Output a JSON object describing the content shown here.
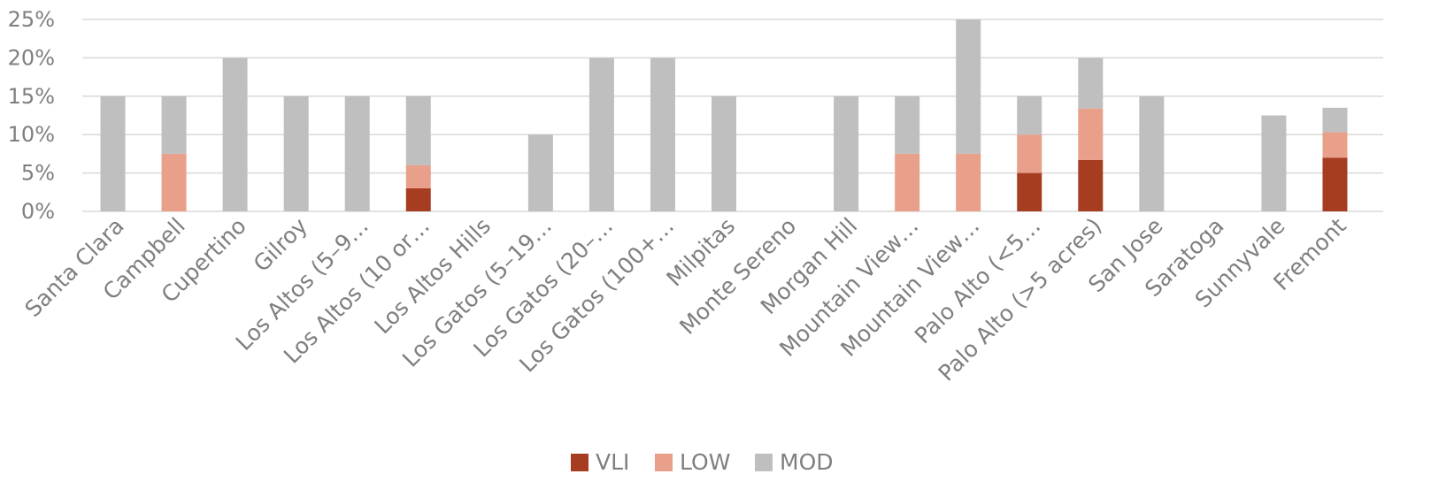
{
  "chart_data": {
    "type": "bar",
    "stacked": true,
    "title": "",
    "xlabel": "",
    "ylabel": "",
    "ylim": [
      0,
      25
    ],
    "y_ticks": [
      "0%",
      "5%",
      "10%",
      "15%",
      "20%",
      "25%"
    ],
    "y_tick_values": [
      0,
      5,
      10,
      15,
      20,
      25
    ],
    "grid": true,
    "legend_position": "bottom",
    "categories": [
      "Santa Clara",
      "Campbell",
      "Cupertino",
      "Gilroy",
      "Los Altos (5–9…",
      "Los Altos (10 or…",
      "Los Altos Hills",
      "Los Gatos (5–19…",
      "Los Gatos (20–…",
      "Los Gatos (100+…",
      "Milpitas",
      "Monte Sereno",
      "Morgan Hill",
      "Mountain View…",
      "Mountain View…",
      "Palo Alto  (<5…",
      "Palo Alto (>5 acres)",
      "San Jose",
      "Saratoga",
      "Sunnyvale",
      "Fremont"
    ],
    "series": [
      {
        "name": "VLI",
        "color": "#a63d20",
        "values": [
          0,
          0,
          0,
          0,
          0,
          3,
          0,
          0,
          0,
          0,
          0,
          0,
          0,
          0,
          0,
          5,
          6.7,
          0,
          0,
          0,
          7
        ]
      },
      {
        "name": "LOW",
        "color": "#e9a08a",
        "values": [
          0,
          7.5,
          0,
          0,
          0,
          3,
          0,
          0,
          0,
          0,
          0,
          0,
          0,
          7.5,
          7.5,
          5,
          6.7,
          0,
          0,
          0,
          3.3
        ]
      },
      {
        "name": "MOD",
        "color": "#bfbfbf",
        "values": [
          15,
          7.5,
          20,
          15,
          15,
          9,
          0,
          10,
          20,
          20,
          15,
          0,
          15,
          7.5,
          17.5,
          5,
          6.6,
          15,
          0,
          12.5,
          3.2
        ]
      }
    ]
  }
}
